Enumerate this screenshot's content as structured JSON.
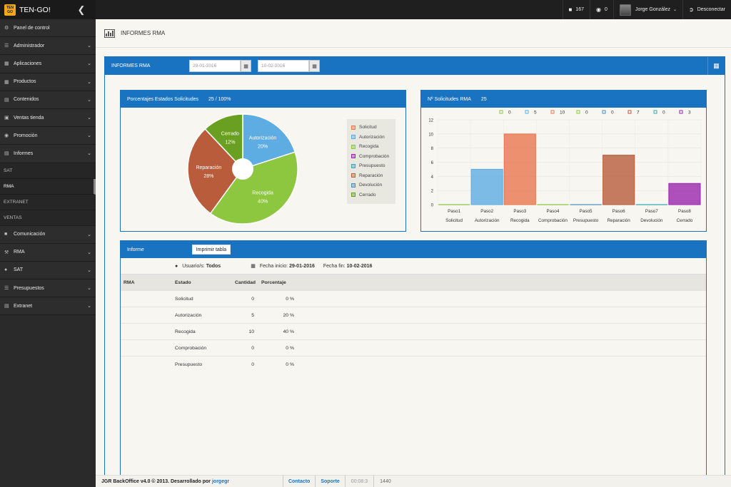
{
  "topbar": {
    "logo_text": "TEN GO",
    "app_name": "TEN-GO!",
    "messages_count": "167",
    "globe_count": "0",
    "user_name": "Jorge González",
    "logout_label": "Desconectar"
  },
  "sidebar": {
    "items": [
      {
        "label": "Panel de control",
        "icon": "dashboard-icon"
      },
      {
        "label": "Administrador",
        "icon": "list-icon"
      },
      {
        "label": "Aplicaciones",
        "icon": "apps-icon"
      },
      {
        "label": "Productos",
        "icon": "grid-icon"
      },
      {
        "label": "Contenidos",
        "icon": "contents-icon"
      },
      {
        "label": "Ventas tienda",
        "icon": "cart-icon"
      },
      {
        "label": "Promoción",
        "icon": "globe-icon"
      },
      {
        "label": "Informes",
        "icon": "report-icon"
      }
    ],
    "subitems": [
      "SAT",
      "RMA",
      "EXTRANET",
      "VENTAS"
    ],
    "items2": [
      {
        "label": "Comunicación",
        "icon": "comment-icon"
      },
      {
        "label": "RMA",
        "icon": "wrench-icon"
      },
      {
        "label": "SAT",
        "icon": "user-icon"
      },
      {
        "label": "Presupuestos",
        "icon": "list-icon"
      },
      {
        "label": "Extranet",
        "icon": "contents-icon"
      }
    ]
  },
  "page": {
    "title": "INFORMES RMA",
    "panel_title": "INFORMES RMA",
    "date_from": "29-01-2016",
    "date_to": "10-02-2016"
  },
  "pie_panel": {
    "title": "Porcentajes Estados Solicitudes",
    "summary": "25 / 100%"
  },
  "bar_panel": {
    "title": "Nº Solicitudes RMA",
    "summary": "25"
  },
  "chart_data": [
    {
      "type": "pie",
      "title": "Porcentajes Estados Solicitudes",
      "slices": [
        {
          "label": "Autorización",
          "value": 20,
          "color": "#5dade2"
        },
        {
          "label": "Recogida",
          "value": 40,
          "color": "#8dc63f"
        },
        {
          "label": "Reparación",
          "value": 28,
          "color": "#b85c3c"
        },
        {
          "label": "Cerrado",
          "value": 12,
          "color": "#6aa022"
        }
      ],
      "legend": [
        {
          "label": "Solicitud",
          "color": "#e8774f"
        },
        {
          "label": "Autorización",
          "color": "#5dade2"
        },
        {
          "label": "Recogida",
          "color": "#8dc63f"
        },
        {
          "label": "Comprobación",
          "color": "#9b27af"
        },
        {
          "label": "Presupuesto",
          "color": "#3aa7b8"
        },
        {
          "label": "Reparación",
          "color": "#c0603f"
        },
        {
          "label": "Devolución",
          "color": "#4a8fc2"
        },
        {
          "label": "Cerrado",
          "color": "#6aa022"
        }
      ],
      "legend_position": "right"
    },
    {
      "type": "bar",
      "title": "Nº Solicitudes RMA",
      "categories": [
        "Paso1",
        "Paso2",
        "Paso3",
        "Paso4",
        "Paso5",
        "Paso6",
        "Paso7",
        "Paso8"
      ],
      "category_sublabels": [
        "Solicitud",
        "Autorización",
        "Recogida",
        "Comprobación",
        "Presupuesto",
        "Reparación",
        "Devolución",
        "Cerrado"
      ],
      "values": [
        0,
        5,
        10,
        0,
        0,
        7,
        0,
        3
      ],
      "colors": [
        "#8dc63f",
        "#5dade2",
        "#e8774f",
        "#8dc63f",
        "#4a8fc2",
        "#b85c3c",
        "#3aa7b8",
        "#9b27af"
      ],
      "ylim": [
        0,
        12
      ],
      "yticks": [
        0,
        2,
        4,
        6,
        8,
        10,
        12
      ],
      "grid": true,
      "legend_position": "top"
    }
  ],
  "report": {
    "title": "Informe",
    "print_label": "Imprimir tabla",
    "users_label": "Usuario/s:",
    "users_value": "Todos",
    "start_label": "Fecha inicio:",
    "start_value": "29-01-2016",
    "end_label": "Fecha fin:",
    "end_value": "10-02-2016",
    "columns": [
      "RMA",
      "Estado",
      "Cantidad",
      "Porcentaje"
    ],
    "rows": [
      {
        "estado": "Solicitud",
        "cantidad": "0",
        "porcentaje": "0 %"
      },
      {
        "estado": "Autorización",
        "cantidad": "5",
        "porcentaje": "20 %"
      },
      {
        "estado": "Recogida",
        "cantidad": "10",
        "porcentaje": "40 %"
      },
      {
        "estado": "Comprobación",
        "cantidad": "0",
        "porcentaje": "0 %"
      },
      {
        "estado": "Presupuesto",
        "cantidad": "0",
        "porcentaje": "0 %"
      }
    ]
  },
  "footer": {
    "copyright": "JGR BackOffice v4.0 © 2013. Desarrollado por",
    "author": "jorgegr",
    "contact": "Contacto",
    "support": "Soporte",
    "time": "00:08:3",
    "resolution": "1440"
  }
}
